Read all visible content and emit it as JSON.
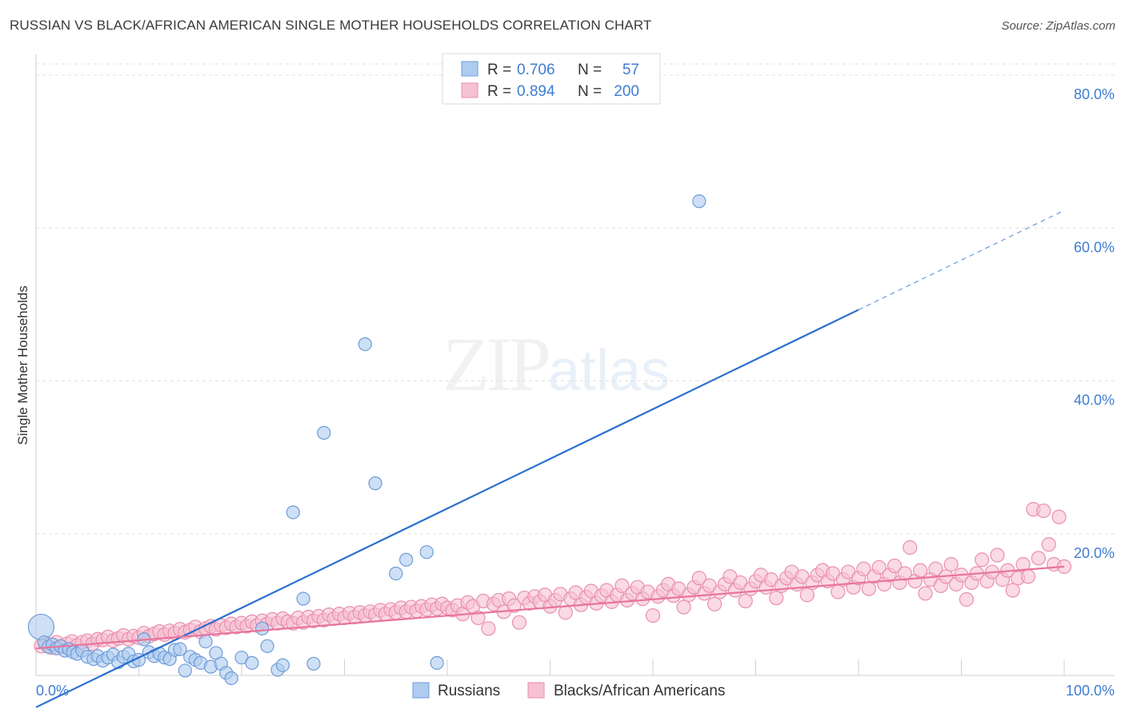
{
  "title": "RUSSIAN VS BLACK/AFRICAN AMERICAN SINGLE MOTHER HOUSEHOLDS CORRELATION CHART",
  "source": "Source: ZipAtlas.com",
  "watermark": {
    "zip": "ZIP",
    "atlas": "atlas"
  },
  "colors": {
    "russians_fill": "#aecbf0",
    "russians_stroke": "#6f9bd8",
    "russians_line": "#2a6fcf",
    "blacks_fill": "#f6c1d2",
    "blacks_stroke": "#e98fae",
    "blacks_line": "#e8749c",
    "tick_label": "#3f7dd1",
    "grid": "#e2e2e2"
  },
  "legend": {
    "rows": [
      {
        "r_label": "R =",
        "r_value": "0.706",
        "n_label": "N =",
        "n_value": "57"
      },
      {
        "r_label": "R =",
        "r_value": "0.894",
        "n_label": "N =",
        "n_value": "200"
      }
    ]
  },
  "bottom_legend": [
    "Russians",
    "Blacks/African Americans"
  ],
  "chart_data": {
    "type": "scatter",
    "ylabel": "Single Mother Households",
    "xlim": [
      0,
      100
    ],
    "ylim": [
      0,
      80
    ],
    "x_tick_labels": [
      "0.0%",
      "100.0%"
    ],
    "y_ticks": [
      20,
      40,
      60,
      80
    ],
    "y_tick_labels": [
      "20.0%",
      "40.0%",
      "60.0%",
      "80.0%"
    ],
    "grid": true,
    "legend_position": "top-center",
    "series": [
      {
        "name": "Russians",
        "R": 0.706,
        "N": 57,
        "trend": {
          "x0": 0,
          "y0": -2.7,
          "x1": 80,
          "y1": 49.3,
          "dash_to_x": 100,
          "dash_to_y": 62.3
        },
        "points": [
          [
            0.5,
            7.8
          ],
          [
            0.8,
            5.8
          ],
          [
            1.2,
            5.2
          ],
          [
            1.6,
            5.5
          ],
          [
            2.0,
            5.0
          ],
          [
            2.4,
            5.3
          ],
          [
            2.8,
            4.7
          ],
          [
            3.2,
            4.9
          ],
          [
            3.6,
            4.5
          ],
          [
            4.0,
            4.3
          ],
          [
            4.5,
            4.7
          ],
          [
            5.0,
            3.9
          ],
          [
            5.6,
            3.6
          ],
          [
            6.0,
            4.0
          ],
          [
            6.5,
            3.4
          ],
          [
            7.0,
            3.8
          ],
          [
            7.5,
            4.2
          ],
          [
            8.0,
            3.2
          ],
          [
            8.5,
            3.9
          ],
          [
            9.0,
            4.3
          ],
          [
            9.5,
            3.3
          ],
          [
            10.0,
            3.5
          ],
          [
            10.5,
            6.2
          ],
          [
            11.0,
            4.5
          ],
          [
            11.5,
            4.0
          ],
          [
            12.0,
            4.3
          ],
          [
            12.5,
            3.8
          ],
          [
            13.0,
            3.6
          ],
          [
            13.5,
            4.8
          ],
          [
            14.0,
            4.9
          ],
          [
            14.5,
            2.1
          ],
          [
            15.0,
            3.9
          ],
          [
            15.5,
            3.5
          ],
          [
            16.0,
            3.1
          ],
          [
            16.5,
            5.9
          ],
          [
            17.0,
            2.6
          ],
          [
            17.5,
            4.4
          ],
          [
            18.0,
            3.0
          ],
          [
            18.5,
            1.8
          ],
          [
            19.0,
            1.1
          ],
          [
            20.0,
            3.8
          ],
          [
            21.0,
            3.1
          ],
          [
            22.0,
            7.6
          ],
          [
            22.5,
            5.3
          ],
          [
            23.5,
            2.2
          ],
          [
            24.0,
            2.8
          ],
          [
            25.0,
            22.8
          ],
          [
            26.0,
            11.5
          ],
          [
            27.0,
            3.0
          ],
          [
            28.0,
            33.2
          ],
          [
            32.0,
            44.8
          ],
          [
            33.0,
            26.6
          ],
          [
            35.0,
            14.8
          ],
          [
            36.0,
            16.6
          ],
          [
            38.0,
            17.6
          ],
          [
            39.0,
            3.1
          ],
          [
            64.5,
            63.5
          ]
        ]
      },
      {
        "name": "Blacks/African Americans",
        "R": 0.894,
        "N": 200,
        "trend": {
          "x0": 0,
          "y0": 5.0,
          "x1": 100,
          "y1": 15.7
        },
        "points": [
          [
            0.5,
            5.3
          ],
          [
            1.0,
            5.6
          ],
          [
            1.5,
            5.1
          ],
          [
            2.0,
            5.8
          ],
          [
            2.5,
            5.2
          ],
          [
            3.0,
            5.6
          ],
          [
            3.5,
            5.9
          ],
          [
            4.0,
            5.4
          ],
          [
            4.5,
            5.8
          ],
          [
            5.0,
            6.0
          ],
          [
            5.5,
            5.6
          ],
          [
            6.0,
            6.2
          ],
          [
            6.5,
            6.1
          ],
          [
            7.0,
            6.5
          ],
          [
            7.5,
            6.0
          ],
          [
            8.0,
            6.3
          ],
          [
            8.5,
            6.7
          ],
          [
            9.0,
            6.2
          ],
          [
            9.5,
            6.6
          ],
          [
            10.0,
            6.4
          ],
          [
            10.5,
            7.0
          ],
          [
            11.0,
            6.6
          ],
          [
            11.5,
            6.9
          ],
          [
            12.0,
            7.2
          ],
          [
            12.5,
            6.8
          ],
          [
            13.0,
            7.3
          ],
          [
            13.5,
            7.0
          ],
          [
            14.0,
            7.5
          ],
          [
            14.5,
            7.1
          ],
          [
            15.0,
            7.4
          ],
          [
            15.5,
            7.8
          ],
          [
            16.0,
            7.2
          ],
          [
            16.5,
            7.6
          ],
          [
            17.0,
            7.9
          ],
          [
            17.5,
            7.5
          ],
          [
            18.0,
            8.0
          ],
          [
            18.5,
            7.7
          ],
          [
            19.0,
            8.2
          ],
          [
            19.5,
            7.8
          ],
          [
            20.0,
            8.3
          ],
          [
            20.5,
            7.9
          ],
          [
            21.0,
            8.5
          ],
          [
            21.5,
            8.0
          ],
          [
            22.0,
            8.6
          ],
          [
            22.5,
            8.2
          ],
          [
            23.0,
            8.8
          ],
          [
            23.5,
            8.3
          ],
          [
            24.0,
            8.9
          ],
          [
            24.5,
            8.5
          ],
          [
            25.0,
            8.3
          ],
          [
            25.5,
            9.0
          ],
          [
            26.0,
            8.4
          ],
          [
            26.5,
            9.1
          ],
          [
            27.0,
            8.6
          ],
          [
            27.5,
            9.2
          ],
          [
            28.0,
            8.7
          ],
          [
            28.5,
            9.4
          ],
          [
            29.0,
            8.9
          ],
          [
            29.5,
            9.5
          ],
          [
            30.0,
            9.0
          ],
          [
            30.5,
            9.6
          ],
          [
            31.0,
            9.1
          ],
          [
            31.5,
            9.7
          ],
          [
            32.0,
            9.3
          ],
          [
            32.5,
            9.8
          ],
          [
            33.0,
            9.4
          ],
          [
            33.5,
            10.0
          ],
          [
            34.0,
            9.5
          ],
          [
            34.5,
            10.1
          ],
          [
            35.0,
            9.7
          ],
          [
            35.5,
            10.3
          ],
          [
            36.0,
            9.8
          ],
          [
            36.5,
            10.4
          ],
          [
            37.0,
            9.9
          ],
          [
            37.5,
            10.5
          ],
          [
            38.0,
            10.1
          ],
          [
            38.5,
            10.7
          ],
          [
            39.0,
            10.2
          ],
          [
            39.5,
            10.8
          ],
          [
            40.0,
            10.3
          ],
          [
            40.5,
            10.0
          ],
          [
            41.0,
            10.6
          ],
          [
            41.5,
            9.5
          ],
          [
            42.0,
            11.0
          ],
          [
            42.5,
            10.5
          ],
          [
            43.0,
            9.0
          ],
          [
            43.5,
            11.2
          ],
          [
            44.0,
            7.6
          ],
          [
            44.5,
            10.8
          ],
          [
            45.0,
            11.3
          ],
          [
            45.5,
            9.8
          ],
          [
            46.0,
            11.5
          ],
          [
            46.5,
            10.6
          ],
          [
            47.0,
            8.4
          ],
          [
            47.5,
            11.6
          ],
          [
            48.0,
            10.9
          ],
          [
            48.5,
            11.8
          ],
          [
            49.0,
            11.1
          ],
          [
            49.5,
            12.0
          ],
          [
            50.0,
            10.5
          ],
          [
            50.5,
            11.3
          ],
          [
            51.0,
            12.1
          ],
          [
            51.5,
            9.7
          ],
          [
            52.0,
            11.5
          ],
          [
            52.5,
            12.3
          ],
          [
            53.0,
            10.7
          ],
          [
            53.5,
            11.7
          ],
          [
            54.0,
            12.5
          ],
          [
            54.5,
            10.9
          ],
          [
            55.0,
            11.9
          ],
          [
            55.5,
            12.6
          ],
          [
            56.0,
            11.1
          ],
          [
            56.5,
            12.0
          ],
          [
            57.0,
            13.2
          ],
          [
            57.5,
            11.3
          ],
          [
            58.0,
            12.2
          ],
          [
            58.5,
            13.0
          ],
          [
            59.0,
            11.5
          ],
          [
            59.5,
            12.4
          ],
          [
            60.0,
            9.3
          ],
          [
            60.5,
            11.8
          ],
          [
            61.0,
            12.6
          ],
          [
            61.5,
            13.4
          ],
          [
            62.0,
            11.9
          ],
          [
            62.5,
            12.8
          ],
          [
            63.0,
            10.4
          ],
          [
            63.5,
            12.0
          ],
          [
            64.0,
            13.0
          ],
          [
            64.5,
            14.2
          ],
          [
            65.0,
            12.2
          ],
          [
            65.5,
            13.2
          ],
          [
            66.0,
            10.8
          ],
          [
            66.5,
            12.4
          ],
          [
            67.0,
            13.4
          ],
          [
            67.5,
            14.4
          ],
          [
            68.0,
            12.6
          ],
          [
            68.5,
            13.6
          ],
          [
            69.0,
            11.2
          ],
          [
            69.5,
            12.8
          ],
          [
            70.0,
            13.8
          ],
          [
            70.5,
            14.6
          ],
          [
            71.0,
            13.0
          ],
          [
            71.5,
            14.0
          ],
          [
            72.0,
            11.6
          ],
          [
            72.5,
            13.2
          ],
          [
            73.0,
            14.2
          ],
          [
            73.5,
            15.0
          ],
          [
            74.0,
            13.4
          ],
          [
            74.5,
            14.4
          ],
          [
            75.0,
            12.0
          ],
          [
            75.5,
            13.6
          ],
          [
            76.0,
            14.6
          ],
          [
            76.5,
            15.2
          ],
          [
            77.0,
            13.8
          ],
          [
            77.5,
            14.8
          ],
          [
            78.0,
            12.4
          ],
          [
            78.5,
            14.0
          ],
          [
            79.0,
            15.0
          ],
          [
            79.5,
            13.0
          ],
          [
            80.0,
            14.2
          ],
          [
            80.5,
            15.4
          ],
          [
            81.0,
            12.8
          ],
          [
            81.5,
            14.4
          ],
          [
            82.0,
            15.6
          ],
          [
            82.5,
            13.4
          ],
          [
            83.0,
            14.6
          ],
          [
            83.5,
            15.8
          ],
          [
            84.0,
            13.6
          ],
          [
            84.5,
            14.8
          ],
          [
            85.0,
            18.2
          ],
          [
            85.5,
            13.8
          ],
          [
            86.0,
            15.2
          ],
          [
            86.5,
            12.2
          ],
          [
            87.0,
            14.0
          ],
          [
            87.5,
            15.4
          ],
          [
            88.0,
            13.2
          ],
          [
            88.5,
            14.4
          ],
          [
            89.0,
            16.0
          ],
          [
            89.5,
            13.4
          ],
          [
            90.0,
            14.6
          ],
          [
            90.5,
            11.4
          ],
          [
            91.0,
            13.6
          ],
          [
            91.5,
            14.8
          ],
          [
            92.0,
            16.6
          ],
          [
            92.5,
            13.8
          ],
          [
            93.0,
            15.0
          ],
          [
            93.5,
            17.2
          ],
          [
            94.0,
            14.0
          ],
          [
            94.5,
            15.2
          ],
          [
            95.0,
            12.6
          ],
          [
            95.5,
            14.2
          ],
          [
            96.0,
            16.0
          ],
          [
            96.5,
            14.4
          ],
          [
            97.0,
            23.2
          ],
          [
            97.5,
            16.8
          ],
          [
            98.0,
            23.0
          ],
          [
            98.5,
            18.6
          ],
          [
            99.0,
            16.0
          ],
          [
            99.5,
            22.2
          ],
          [
            100.0,
            15.7
          ]
        ]
      }
    ]
  }
}
